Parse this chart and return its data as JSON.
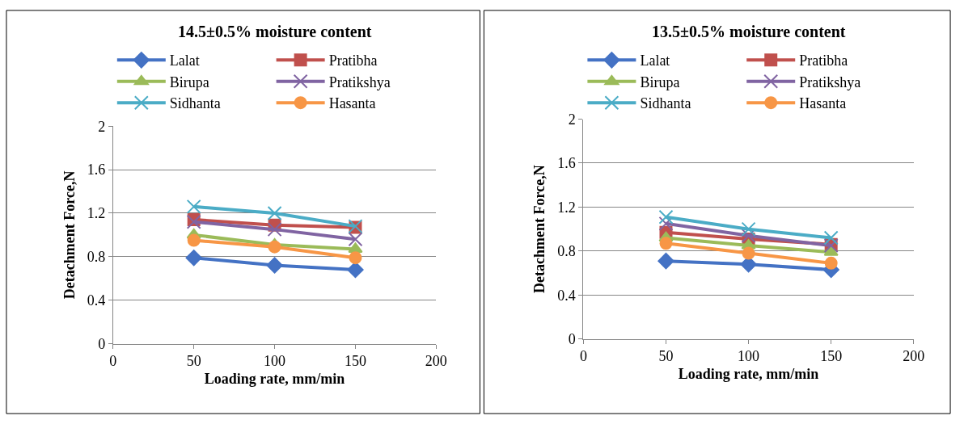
{
  "chart_data": [
    {
      "type": "line",
      "title": "14.5±0.5% moisture content",
      "xlabel": "Loading rate, mm/min",
      "ylabel": "Detachment Force,N",
      "x": [
        50,
        100,
        150
      ],
      "xlim": [
        0,
        200
      ],
      "xticks": [
        0,
        50,
        100,
        150,
        200
      ],
      "ylim": [
        0,
        2
      ],
      "yticks": [
        0,
        0.4,
        0.8,
        1.2,
        1.6,
        2
      ],
      "grid": "y",
      "legend": "top",
      "series": [
        {
          "name": "Lalat",
          "color": "#4472c4",
          "marker": "diamond",
          "values": [
            0.79,
            0.72,
            0.68
          ]
        },
        {
          "name": "Pratibha",
          "color": "#c0504d",
          "marker": "square",
          "values": [
            1.14,
            1.09,
            1.07
          ]
        },
        {
          "name": "Birupa",
          "color": "#9bbb59",
          "marker": "triangle",
          "values": [
            1.0,
            0.91,
            0.87
          ]
        },
        {
          "name": "Pratikshya",
          "color": "#8064a2",
          "marker": "cross",
          "values": [
            1.12,
            1.05,
            0.96
          ]
        },
        {
          "name": "Sidhanta",
          "color": "#4bacc6",
          "marker": "cross",
          "values": [
            1.26,
            1.2,
            1.08
          ]
        },
        {
          "name": "Hasanta",
          "color": "#f79646",
          "marker": "circle",
          "values": [
            0.95,
            0.89,
            0.79
          ]
        }
      ]
    },
    {
      "type": "line",
      "title": "13.5±0.5% moisture content",
      "xlabel": "Loading rate, mm/min",
      "ylabel": "Detachment Force,N",
      "x": [
        50,
        100,
        150
      ],
      "xlim": [
        0,
        200
      ],
      "xticks": [
        0,
        50,
        100,
        150,
        200
      ],
      "ylim": [
        0,
        2
      ],
      "yticks": [
        0,
        0.4,
        0.8,
        1.2,
        1.6,
        2
      ],
      "grid": "y",
      "legend": "top",
      "series": [
        {
          "name": "Lalat",
          "color": "#4472c4",
          "marker": "diamond",
          "values": [
            0.71,
            0.68,
            0.63
          ]
        },
        {
          "name": "Pratibha",
          "color": "#c0504d",
          "marker": "square",
          "values": [
            0.97,
            0.91,
            0.86
          ]
        },
        {
          "name": "Birupa",
          "color": "#9bbb59",
          "marker": "triangle",
          "values": [
            0.92,
            0.85,
            0.79
          ]
        },
        {
          "name": "Pratikshya",
          "color": "#8064a2",
          "marker": "cross",
          "values": [
            1.05,
            0.94,
            0.85
          ]
        },
        {
          "name": "Sidhanta",
          "color": "#4bacc6",
          "marker": "cross",
          "values": [
            1.11,
            1.0,
            0.92
          ]
        },
        {
          "name": "Hasanta",
          "color": "#f79646",
          "marker": "circle",
          "values": [
            0.87,
            0.78,
            0.69
          ]
        }
      ]
    }
  ]
}
